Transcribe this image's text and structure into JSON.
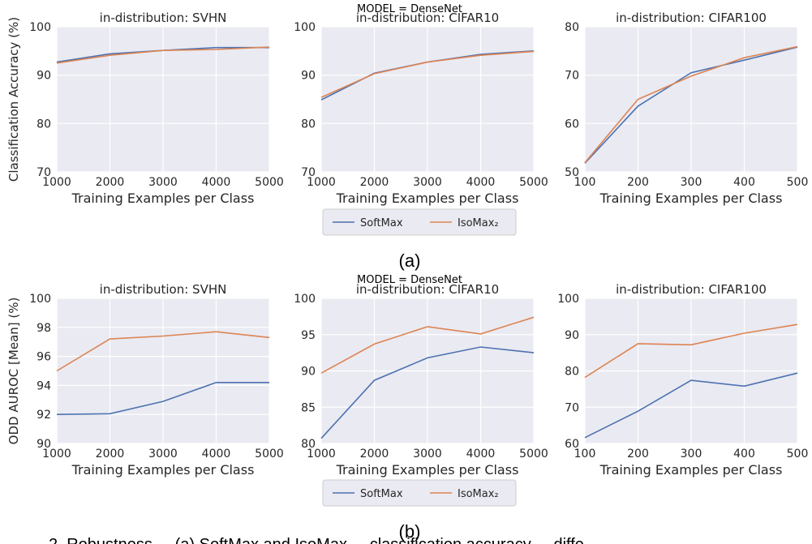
{
  "figure": {
    "model_label": "MODEL = DenseNet",
    "panel_a": "(a)",
    "panel_b": "(b)",
    "caption_fragment": "2. Robustness ... (a) SoftMax and IsoMax ... classification accuracy ... diffe"
  },
  "legend": [
    {
      "name": "SoftMax",
      "color": "#4c72b0"
    },
    {
      "name": "IsoMax₂",
      "color": "#dd8452"
    }
  ],
  "chart_data": [
    {
      "type": "line",
      "row": 0,
      "col": 0,
      "title": "in-distribution: SVHN",
      "xlabel": "Training Examples per Class",
      "ylabel": "Classification Accuracy (%)",
      "x": [
        1000,
        2000,
        3000,
        4000,
        5000
      ],
      "xlim": [
        1000,
        5000
      ],
      "ylim": [
        70,
        100
      ],
      "xticks": [
        1000,
        2000,
        3000,
        4000,
        5000
      ],
      "yticks": [
        70,
        80,
        90,
        100
      ],
      "series": [
        {
          "name": "SoftMax",
          "values": [
            92.7,
            94.4,
            95.1,
            95.7,
            95.7
          ]
        },
        {
          "name": "IsoMax₂",
          "values": [
            92.5,
            94.1,
            95.1,
            95.3,
            95.8
          ]
        }
      ]
    },
    {
      "type": "line",
      "row": 0,
      "col": 1,
      "title": "in-distribution: CIFAR10",
      "xlabel": "Training Examples per Class",
      "ylabel": "",
      "x": [
        1000,
        2000,
        3000,
        4000,
        5000
      ],
      "xlim": [
        1000,
        5000
      ],
      "ylim": [
        70,
        100
      ],
      "xticks": [
        1000,
        2000,
        3000,
        4000,
        5000
      ],
      "yticks": [
        70,
        80,
        90,
        100
      ],
      "series": [
        {
          "name": "SoftMax",
          "values": [
            84.9,
            90.4,
            92.7,
            94.3,
            95.0
          ]
        },
        {
          "name": "IsoMax₂",
          "values": [
            85.4,
            90.3,
            92.7,
            94.1,
            94.9
          ]
        }
      ]
    },
    {
      "type": "line",
      "row": 0,
      "col": 2,
      "title": "in-distribution: CIFAR100",
      "xlabel": "Training Examples per Class",
      "ylabel": "",
      "x": [
        100,
        200,
        300,
        400,
        500
      ],
      "xlim": [
        100,
        500
      ],
      "ylim": [
        50,
        80
      ],
      "xticks": [
        100,
        200,
        300,
        400,
        500
      ],
      "yticks": [
        50,
        60,
        70,
        80
      ],
      "series": [
        {
          "name": "SoftMax",
          "values": [
            51.8,
            63.6,
            70.5,
            73.1,
            75.8
          ]
        },
        {
          "name": "IsoMax₂",
          "values": [
            51.9,
            65.0,
            69.8,
            73.6,
            75.9
          ]
        }
      ]
    },
    {
      "type": "line",
      "row": 1,
      "col": 0,
      "title": "in-distribution: SVHN",
      "xlabel": "Training Examples per Class",
      "ylabel": "ODD AUROC [Mean] (%)",
      "x": [
        1000,
        2000,
        3000,
        4000,
        5000
      ],
      "xlim": [
        1000,
        5000
      ],
      "ylim": [
        90,
        100
      ],
      "xticks": [
        1000,
        2000,
        3000,
        4000,
        5000
      ],
      "yticks": [
        90,
        92,
        94,
        96,
        98,
        100
      ],
      "series": [
        {
          "name": "SoftMax",
          "values": [
            92.0,
            92.05,
            92.9,
            94.2,
            94.2
          ]
        },
        {
          "name": "IsoMax₂",
          "values": [
            95.0,
            97.2,
            97.4,
            97.7,
            97.3
          ]
        }
      ]
    },
    {
      "type": "line",
      "row": 1,
      "col": 1,
      "title": "in-distribution: CIFAR10",
      "xlabel": "Training Examples per Class",
      "ylabel": "",
      "x": [
        1000,
        2000,
        3000,
        4000,
        5000
      ],
      "xlim": [
        1000,
        5000
      ],
      "ylim": [
        80,
        100
      ],
      "xticks": [
        1000,
        2000,
        3000,
        4000,
        5000
      ],
      "yticks": [
        80,
        85,
        90,
        95,
        100
      ],
      "series": [
        {
          "name": "SoftMax",
          "values": [
            80.7,
            88.7,
            91.8,
            93.3,
            92.5
          ]
        },
        {
          "name": "IsoMax₂",
          "values": [
            89.7,
            93.7,
            96.1,
            95.1,
            97.4
          ]
        }
      ]
    },
    {
      "type": "line",
      "row": 1,
      "col": 2,
      "title": "in-distribution: CIFAR100",
      "xlabel": "Training Examples per Class",
      "ylabel": "",
      "x": [
        100,
        200,
        300,
        400,
        500
      ],
      "xlim": [
        100,
        500
      ],
      "ylim": [
        60,
        100
      ],
      "xticks": [
        100,
        200,
        300,
        400,
        500
      ],
      "yticks": [
        60,
        70,
        80,
        90,
        100
      ],
      "series": [
        {
          "name": "SoftMax",
          "values": [
            61.6,
            68.9,
            77.4,
            75.8,
            79.4
          ]
        },
        {
          "name": "IsoMax₂",
          "values": [
            78.2,
            87.5,
            87.2,
            90.4,
            92.8
          ]
        }
      ]
    }
  ]
}
